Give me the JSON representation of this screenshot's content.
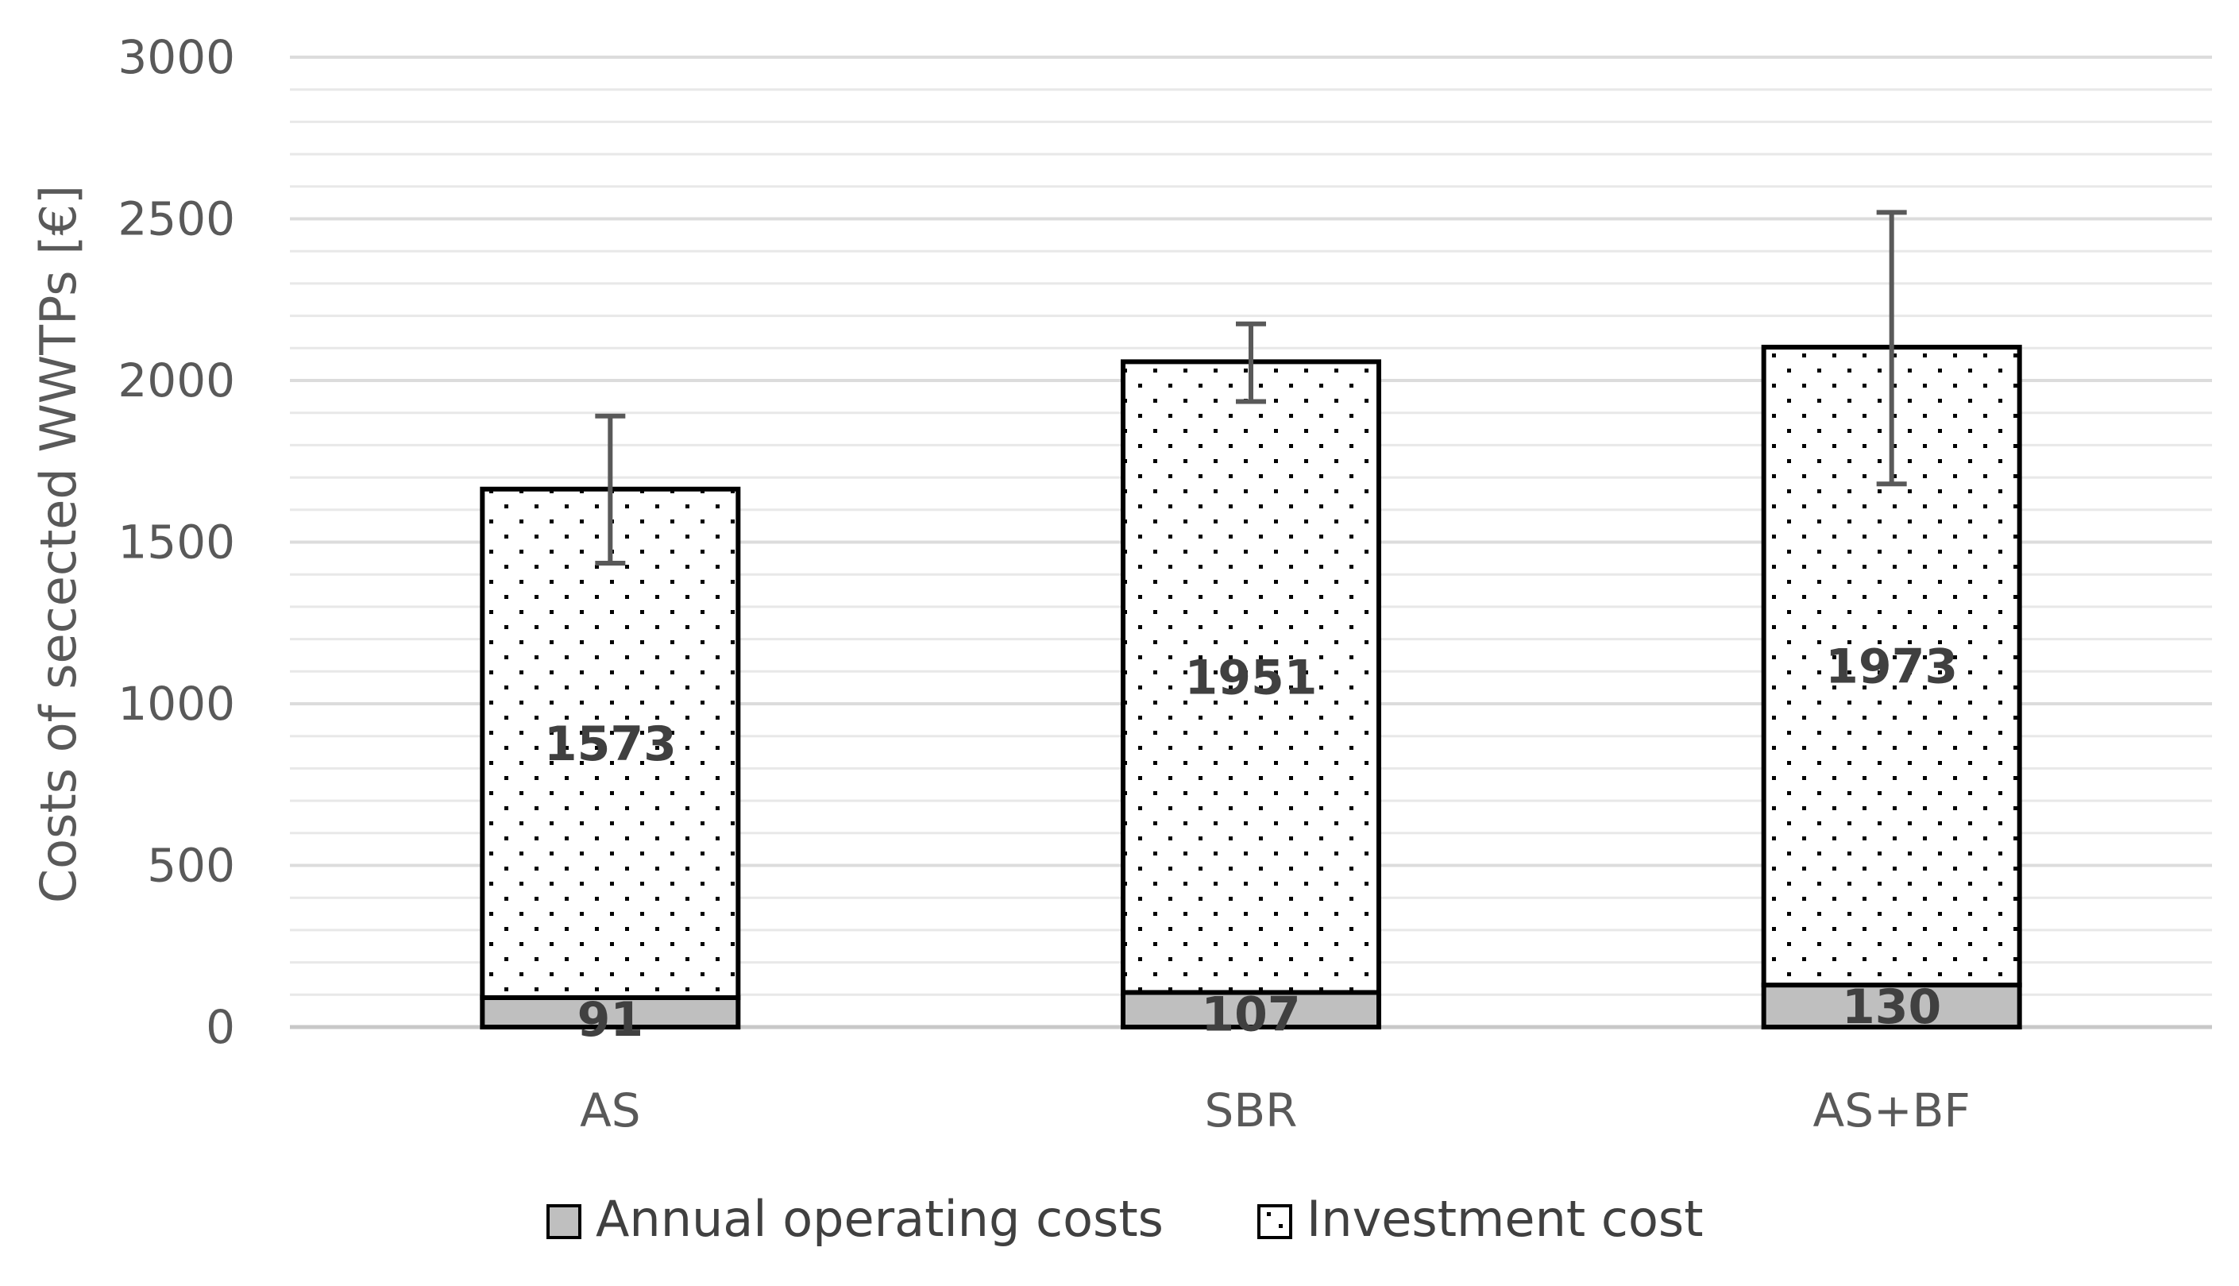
{
  "chart_data": {
    "type": "bar",
    "stacked": true,
    "title": "",
    "xlabel": "",
    "ylabel": "Costs of secected WWTPs [€]",
    "ylim": [
      0,
      3000
    ],
    "yticks": [
      0,
      500,
      1000,
      1500,
      2000,
      2500,
      3000
    ],
    "minor_grid_step": 100,
    "categories": [
      "AS",
      "SBR",
      "AS+BF"
    ],
    "series": [
      {
        "name": "Annual operating costs",
        "values": [
          91,
          107,
          130
        ],
        "labels": [
          "91",
          "107",
          "130"
        ],
        "color": "#bfbfbf",
        "pattern": "solid-grey"
      },
      {
        "name": "Investment cost",
        "values": [
          1573,
          1951,
          1973
        ],
        "labels": [
          "1573",
          "1951",
          "1973"
        ],
        "color": "#ffffff",
        "pattern": "dotted"
      }
    ],
    "error_bars": [
      {
        "category": "AS",
        "low": 1435,
        "high": 1890
      },
      {
        "category": "SBR",
        "low": 1935,
        "high": 2175
      },
      {
        "category": "AS+BF",
        "low": 1680,
        "high": 2520
      }
    ],
    "legend": {
      "position": "bottom"
    },
    "colors": {
      "axis_text": "#595959",
      "grid": "#e8e8e8",
      "bar_outline": "#000000",
      "error_bar": "#595959"
    }
  }
}
